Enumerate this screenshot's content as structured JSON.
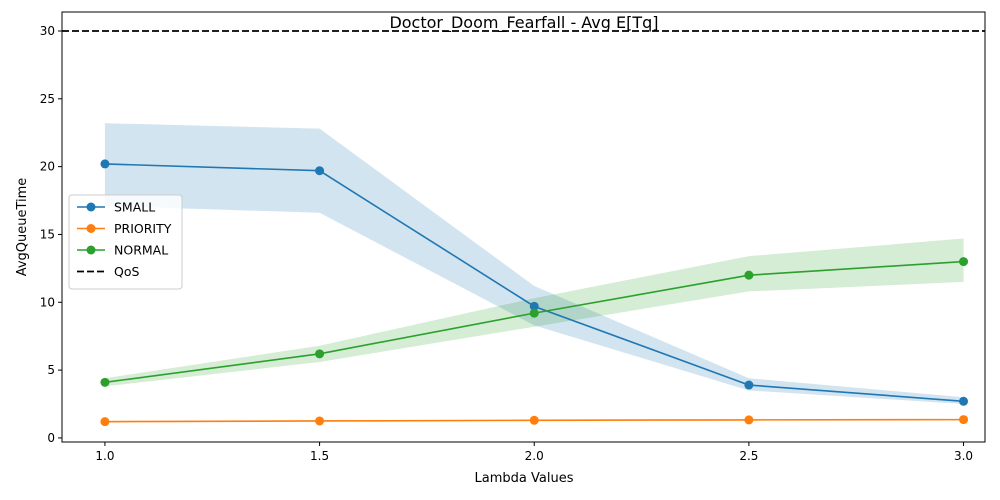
{
  "chart_data": {
    "type": "line",
    "title": "Doctor_Doom_Fearfall - Avg E[Tq]",
    "xlabel": "Lambda Values",
    "ylabel": "AvgQueueTime",
    "x": [
      1.0,
      1.5,
      2.0,
      2.5,
      3.0
    ],
    "x_tick_labels": [
      "1.0",
      "1.5",
      "2.0",
      "2.5",
      "3.0"
    ],
    "xlim": [
      0.9,
      3.05
    ],
    "ylim": [
      -0.3,
      31.4
    ],
    "y_ticks": [
      0,
      5,
      10,
      15,
      20,
      25,
      30
    ],
    "y_tick_labels": [
      "0",
      "5",
      "10",
      "15",
      "20",
      "25",
      "30"
    ],
    "grid": false,
    "legend_position": "center-left",
    "series": [
      {
        "name": "SMALL",
        "color": "#1f77b4",
        "values": [
          20.2,
          19.7,
          9.7,
          3.9,
          2.7
        ],
        "lower": [
          17.1,
          16.6,
          8.3,
          3.5,
          2.5
        ],
        "upper": [
          23.2,
          22.8,
          11.2,
          4.4,
          3.0
        ]
      },
      {
        "name": "PRIORITY",
        "color": "#ff7f0e",
        "values": [
          1.2,
          1.25,
          1.3,
          1.33,
          1.35
        ],
        "lower": [
          1.15,
          1.2,
          1.25,
          1.28,
          1.3
        ],
        "upper": [
          1.25,
          1.3,
          1.35,
          1.38,
          1.4
        ]
      },
      {
        "name": "NORMAL",
        "color": "#2ca02c",
        "values": [
          4.1,
          6.2,
          9.2,
          12.0,
          13.0
        ],
        "lower": [
          3.8,
          5.6,
          8.2,
          10.8,
          11.5
        ],
        "upper": [
          4.4,
          6.8,
          10.3,
          13.4,
          14.7
        ]
      }
    ],
    "reference_line": {
      "name": "QoS",
      "y": 30,
      "color": "#000000",
      "style": "dashed"
    }
  }
}
